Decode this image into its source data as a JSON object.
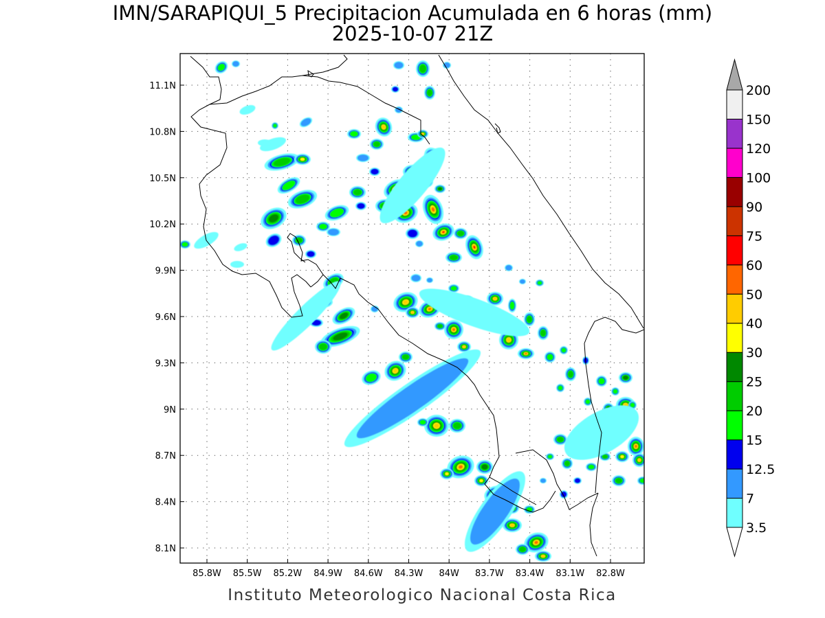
{
  "title": {
    "line1": "IMN/SARAPIQUI_5 Precipitacion Acumulada en 6 horas (mm)",
    "line2": "2025-10-07 21Z"
  },
  "credit": "Instituto Meteorologico Nacional Costa Rica",
  "map": {
    "lon_range": [
      -85.98,
      -82.98
    ],
    "lat_range": [
      8.0,
      11.3
    ],
    "lat_ticks": [
      "11.1N",
      "10.8N",
      "10.5N",
      "10.2N",
      "9.9N",
      "9.6N",
      "9.3N",
      "9N",
      "8.7N",
      "8.4N",
      "8.1N"
    ],
    "lon_ticks": [
      "85.8W",
      "85.5W",
      "85.2W",
      "84.9W",
      "84.6W",
      "84.3W",
      "84W",
      "83.7W",
      "83.4W",
      "83.1W",
      "82.8W"
    ],
    "grid": "dotted"
  },
  "colorbar": {
    "labels": [
      "3.5",
      "7",
      "12.5",
      "15",
      "20",
      "25",
      "30",
      "40",
      "50",
      "60",
      "75",
      "90",
      "100",
      "120",
      "150",
      "200"
    ],
    "colors": [
      "#ffffff",
      "#6fffff",
      "#3399ff",
      "#0000ee",
      "#00ff00",
      "#00cc00",
      "#008800",
      "#ffff00",
      "#ffcc00",
      "#ff6600",
      "#ff0000",
      "#cc3300",
      "#990000",
      "#ff00cc",
      "#9933cc",
      "#f0f0f0"
    ],
    "over_color": "#a8a8a8",
    "under_color": "#ffffff"
  }
}
